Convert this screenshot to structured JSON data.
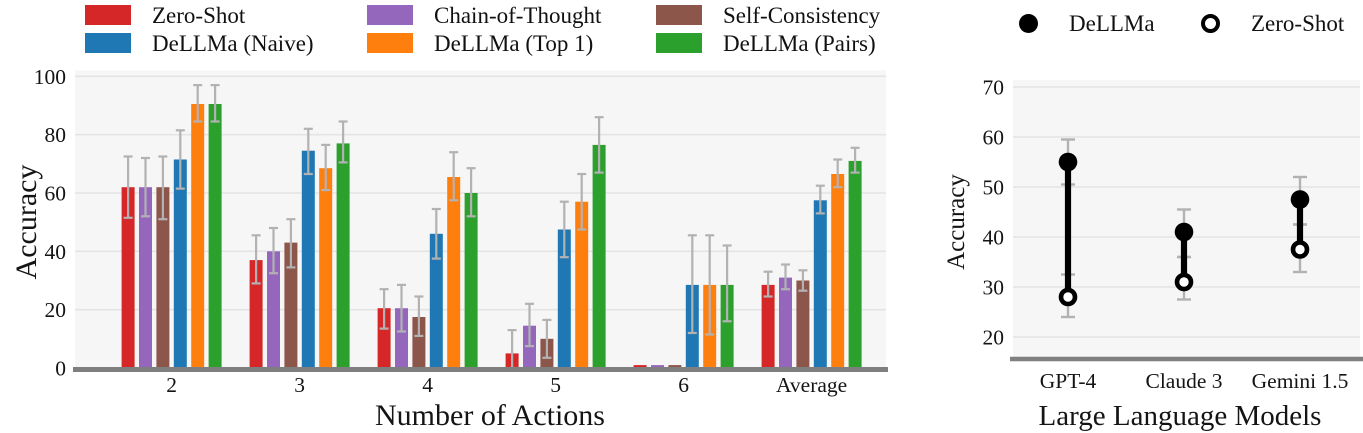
{
  "style": {
    "plot_bg": "#f6f6f6",
    "grid": "#e4e4e4",
    "axis_line": "#7f7f7f",
    "error_bar": "#b2b2b2",
    "marker": "#000000"
  },
  "chart_data": [
    {
      "id": "bar-chart-actions",
      "type": "bar",
      "title": "",
      "xlabel": "Number of Actions",
      "ylabel": "Accuracy",
      "categories": [
        "2",
        "3",
        "4",
        "5",
        "6",
        "Average"
      ],
      "yticks": [
        0,
        20,
        40,
        60,
        80,
        100
      ],
      "ylim": [
        0,
        102
      ],
      "grid": true,
      "legend_position": "top",
      "legend_rows": [
        [
          0,
          1,
          2
        ],
        [
          3,
          4,
          5
        ]
      ],
      "series": [
        {
          "name": "Zero-Shot",
          "color": "#d62728",
          "values": [
            62,
            37,
            20.5,
            5,
            1,
            28.5
          ],
          "err_low": [
            51.5,
            29,
            13.5,
            0,
            null,
            24.5
          ],
          "err_high": [
            72.5,
            45.5,
            27,
            13,
            null,
            33
          ]
        },
        {
          "name": "Chain-of-Thought",
          "color": "#9467bd",
          "values": [
            62,
            40,
            20.5,
            14.5,
            1,
            31
          ],
          "err_low": [
            52,
            32.5,
            12.5,
            7.5,
            null,
            27
          ],
          "err_high": [
            72,
            48,
            28.5,
            22,
            null,
            35.5
          ]
        },
        {
          "name": "Self-Consistency",
          "color": "#8c564b",
          "values": [
            62,
            43,
            17.5,
            10,
            1,
            30
          ],
          "err_low": [
            51,
            34.5,
            11,
            3.5,
            null,
            26.5
          ],
          "err_high": [
            72.5,
            51,
            24.5,
            16.5,
            null,
            33.5
          ]
        },
        {
          "name": "DeLLMa (Naive)",
          "color": "#1f77b4",
          "values": [
            71.5,
            74.5,
            46,
            47.5,
            28.5,
            57.5
          ],
          "err_low": [
            61.5,
            66.5,
            37.5,
            38,
            12,
            53
          ],
          "err_high": [
            81.5,
            82,
            54.5,
            57,
            45.5,
            62.5
          ]
        },
        {
          "name": "DeLLMa (Top 1)",
          "color": "#ff7f0e",
          "values": [
            90.5,
            68.5,
            65.5,
            57,
            28.5,
            66.5
          ],
          "err_low": [
            84.5,
            61,
            57.5,
            47.5,
            11.5,
            62
          ],
          "err_high": [
            97,
            76.5,
            74,
            66.5,
            45.5,
            71.5
          ]
        },
        {
          "name": "DeLLMa (Pairs)",
          "color": "#2ca02c",
          "values": [
            90.5,
            77,
            60,
            76.5,
            28.5,
            71
          ],
          "err_low": [
            84.5,
            70.5,
            52,
            67,
            16,
            67
          ],
          "err_high": [
            97,
            84.5,
            68.5,
            86,
            42,
            75.5
          ]
        }
      ]
    },
    {
      "id": "dumbbell-chart-llms",
      "type": "dumbbell",
      "title": "",
      "xlabel": "Large Language Models",
      "ylabel": "Accuracy",
      "categories": [
        "GPT-4",
        "Claude 3",
        "Gemini 1.5"
      ],
      "yticks": [
        20,
        30,
        40,
        50,
        60,
        70
      ],
      "ylim": [
        16,
        71.5
      ],
      "grid": true,
      "legend_position": "top",
      "series": [
        {
          "name": "DeLLMa",
          "marker": "filled",
          "values": [
            55,
            41,
            47.5
          ],
          "err_low": [
            50.5,
            36,
            42.5
          ],
          "err_high": [
            59.5,
            45.5,
            52
          ]
        },
        {
          "name": "Zero-Shot",
          "marker": "open",
          "values": [
            28,
            31,
            37.5
          ],
          "err_low": [
            24,
            27.5,
            33
          ],
          "err_high": [
            32.5,
            36,
            42.5
          ]
        }
      ]
    }
  ]
}
